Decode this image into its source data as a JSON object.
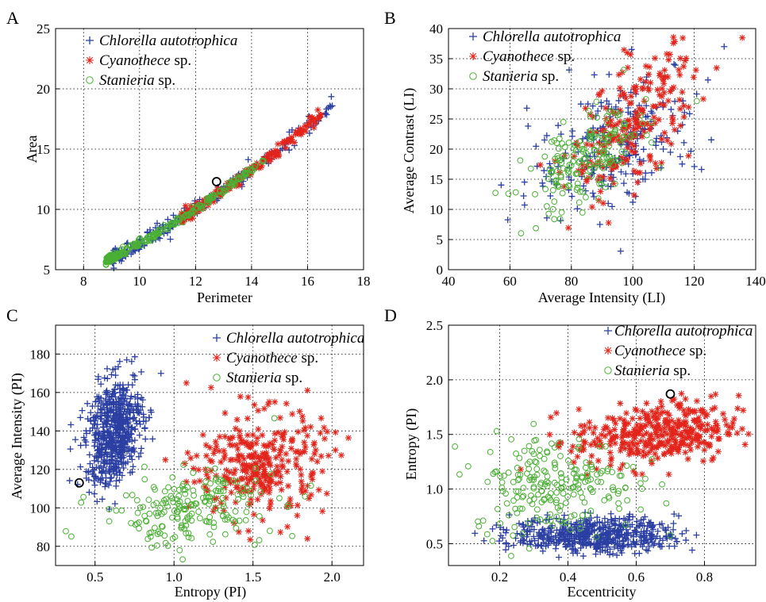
{
  "panels": [
    {
      "letter": "A",
      "xlabel": "Perimeter",
      "ylabel": "Area",
      "xlim": [
        7,
        18
      ],
      "ylim": [
        5,
        25
      ],
      "xticks": [
        8,
        10,
        12,
        14,
        16,
        18
      ],
      "yticks": [
        5,
        10,
        15,
        20,
        25
      ],
      "xtick_labels": [
        "8",
        "10",
        "12",
        "14",
        "16",
        "18"
      ],
      "ytick_labels": [
        "5",
        "10",
        "15",
        "20",
        "25"
      ],
      "legend": [
        {
          "genus": "Chlorella autotrophica",
          "suffix": ""
        },
        {
          "genus": "Cyanothece",
          "suffix": " sp."
        },
        {
          "genus": "Stanieria",
          "suffix": " sp."
        }
      ],
      "highlight": [
        12.75,
        12.3
      ]
    },
    {
      "letter": "B",
      "xlabel": "Average Intensity (LI)",
      "ylabel": "Average Contrast (LI)",
      "xlim": [
        40,
        140
      ],
      "ylim": [
        0,
        40
      ],
      "xticks": [
        40,
        60,
        80,
        100,
        120,
        140
      ],
      "yticks": [
        0,
        5,
        10,
        15,
        20,
        25,
        30,
        35,
        40
      ],
      "xtick_labels": [
        "40",
        "60",
        "80",
        "100",
        "120",
        "140"
      ],
      "ytick_labels": [
        "0",
        "5",
        "10",
        "15",
        "20",
        "25",
        "30",
        "35",
        "40"
      ],
      "legend": [
        {
          "genus": "Chlorella autotrophica",
          "suffix": ""
        },
        {
          "genus": "Cyanothece",
          "suffix": " sp."
        },
        {
          "genus": "Stanieria",
          "suffix": " sp."
        }
      ]
    },
    {
      "letter": "C",
      "xlabel": "Entropy (PI)",
      "ylabel": "Average Intensity (PI)",
      "xlim": [
        0.25,
        2.2
      ],
      "ylim": [
        70,
        195
      ],
      "xticks": [
        0.5,
        1.0,
        1.5,
        2.0
      ],
      "yticks": [
        80,
        100,
        120,
        140,
        160,
        180
      ],
      "xtick_labels": [
        "0.5",
        "1.0",
        "1.5",
        "2.0"
      ],
      "ytick_labels": [
        "80",
        "100",
        "120",
        "140",
        "160",
        "180"
      ],
      "legend": [
        {
          "genus": "Chlorella autotrophica",
          "suffix": ""
        },
        {
          "genus": "Cyanothece",
          "suffix": " sp."
        },
        {
          "genus": "Stanieria",
          "suffix": " sp."
        }
      ],
      "highlight": [
        0.4,
        113
      ]
    },
    {
      "letter": "D",
      "xlabel": "Eccentricity",
      "ylabel": "Entropy (PI)",
      "xlim": [
        0.05,
        0.95
      ],
      "ylim": [
        0.3,
        2.5
      ],
      "xticks": [
        0.2,
        0.4,
        0.6,
        0.8
      ],
      "yticks": [
        0.5,
        1.0,
        1.5,
        2.0,
        2.5
      ],
      "xtick_labels": [
        "0.2",
        "0.4",
        "0.6",
        "0.8"
      ],
      "ytick_labels": [
        "0.5",
        "1.0",
        "1.5",
        "2.0",
        "2.5"
      ],
      "legend": [
        {
          "genus": "Chlorella autotrophica",
          "suffix": ""
        },
        {
          "genus": "Cyanothece",
          "suffix": " sp."
        },
        {
          "genus": "Stanieria",
          "suffix": " sp."
        }
      ],
      "highlight": [
        0.7,
        1.87
      ]
    }
  ],
  "chart_data": [
    {
      "type": "scatter",
      "title": "",
      "xlabel": "Perimeter",
      "ylabel": "Area",
      "xlim": [
        7,
        18
      ],
      "ylim": [
        5,
        25
      ],
      "grid": true,
      "legend_position": "top-left",
      "series": [
        {
          "name": "Chlorella autotrophica",
          "marker": "plus",
          "color": "#2b3fa3",
          "count": 200,
          "shape": "band",
          "x_range": [
            9.0,
            17.0
          ],
          "trend": [
            0.35,
            -0.4,
            1.1
          ],
          "spread": 0.45
        },
        {
          "name": "Cyanothece sp.",
          "marker": "asterisk",
          "color": "#e3241b",
          "count": 220,
          "shape": "band",
          "x_range": [
            11.5,
            16.5
          ],
          "trend": [
            0.35,
            -0.4,
            1.08
          ],
          "spread": 0.3
        },
        {
          "name": "Stanieria sp.",
          "marker": "circle",
          "color": "#4bb035",
          "count": 240,
          "shape": "band",
          "x_range": [
            8.8,
            14.5
          ],
          "trend": [
            0.35,
            -0.4,
            1.12
          ],
          "spread": 0.2
        }
      ]
    },
    {
      "type": "scatter",
      "title": "",
      "xlabel": "Average Intensity (LI)",
      "ylabel": "Average Contrast (LI)",
      "xlim": [
        40,
        140
      ],
      "ylim": [
        0,
        40
      ],
      "grid": true,
      "legend_position": "top-left",
      "series": [
        {
          "name": "Chlorella autotrophica",
          "marker": "plus",
          "color": "#2b3fa3",
          "count": 230,
          "shape": "cloud",
          "center": [
            95,
            21
          ],
          "sd": [
            14,
            6
          ],
          "rho": 0.45
        },
        {
          "name": "Cyanothece sp.",
          "marker": "asterisk",
          "color": "#e3241b",
          "count": 230,
          "shape": "cloud",
          "center": [
            100,
            24
          ],
          "sd": [
            10,
            6
          ],
          "rho": 0.6
        },
        {
          "name": "Stanieria sp.",
          "marker": "circle",
          "color": "#4bb035",
          "count": 180,
          "shape": "cloud",
          "center": [
            85,
            18
          ],
          "sd": [
            10,
            4.5
          ],
          "rho": 0.6
        }
      ]
    },
    {
      "type": "scatter",
      "title": "",
      "xlabel": "Entropy (PI)",
      "ylabel": "Average Intensity (PI)",
      "xlim": [
        0.25,
        2.2
      ],
      "ylim": [
        70,
        195
      ],
      "grid": true,
      "legend_position": "top-right",
      "series": [
        {
          "name": "Chlorella autotrophica",
          "marker": "plus",
          "color": "#2b3fa3",
          "count": 600,
          "shape": "cloud",
          "center": [
            0.62,
            140
          ],
          "sd": [
            0.09,
            14
          ],
          "rho": 0.3
        },
        {
          "name": "Cyanothece sp.",
          "marker": "asterisk",
          "color": "#e3241b",
          "count": 320,
          "shape": "cloud",
          "center": [
            1.55,
            122
          ],
          "sd": [
            0.2,
            14
          ],
          "rho": 0.05
        },
        {
          "name": "Stanieria sp.",
          "marker": "circle",
          "color": "#4bb035",
          "count": 200,
          "shape": "cloud",
          "center": [
            1.1,
            100
          ],
          "sd": [
            0.28,
            10
          ],
          "rho": 0.3
        }
      ]
    },
    {
      "type": "scatter",
      "title": "",
      "xlabel": "Eccentricity",
      "ylabel": "Entropy (PI)",
      "xlim": [
        0.05,
        0.95
      ],
      "ylim": [
        0.3,
        2.5
      ],
      "grid": true,
      "legend_position": "top-right",
      "series": [
        {
          "name": "Chlorella autotrophica",
          "marker": "plus",
          "color": "#2b3fa3",
          "count": 550,
          "shape": "cloud",
          "center": [
            0.48,
            0.58
          ],
          "sd": [
            0.12,
            0.08
          ],
          "rho": 0.0
        },
        {
          "name": "Cyanothece sp.",
          "marker": "asterisk",
          "color": "#e3241b",
          "count": 380,
          "shape": "cloud",
          "center": [
            0.66,
            1.5
          ],
          "sd": [
            0.12,
            0.15
          ],
          "rho": 0.2
        },
        {
          "name": "Stanieria sp.",
          "marker": "circle",
          "color": "#4bb035",
          "count": 220,
          "shape": "cloud",
          "center": [
            0.36,
            1.05
          ],
          "sd": [
            0.12,
            0.22
          ],
          "rho": 0.0
        }
      ]
    }
  ]
}
